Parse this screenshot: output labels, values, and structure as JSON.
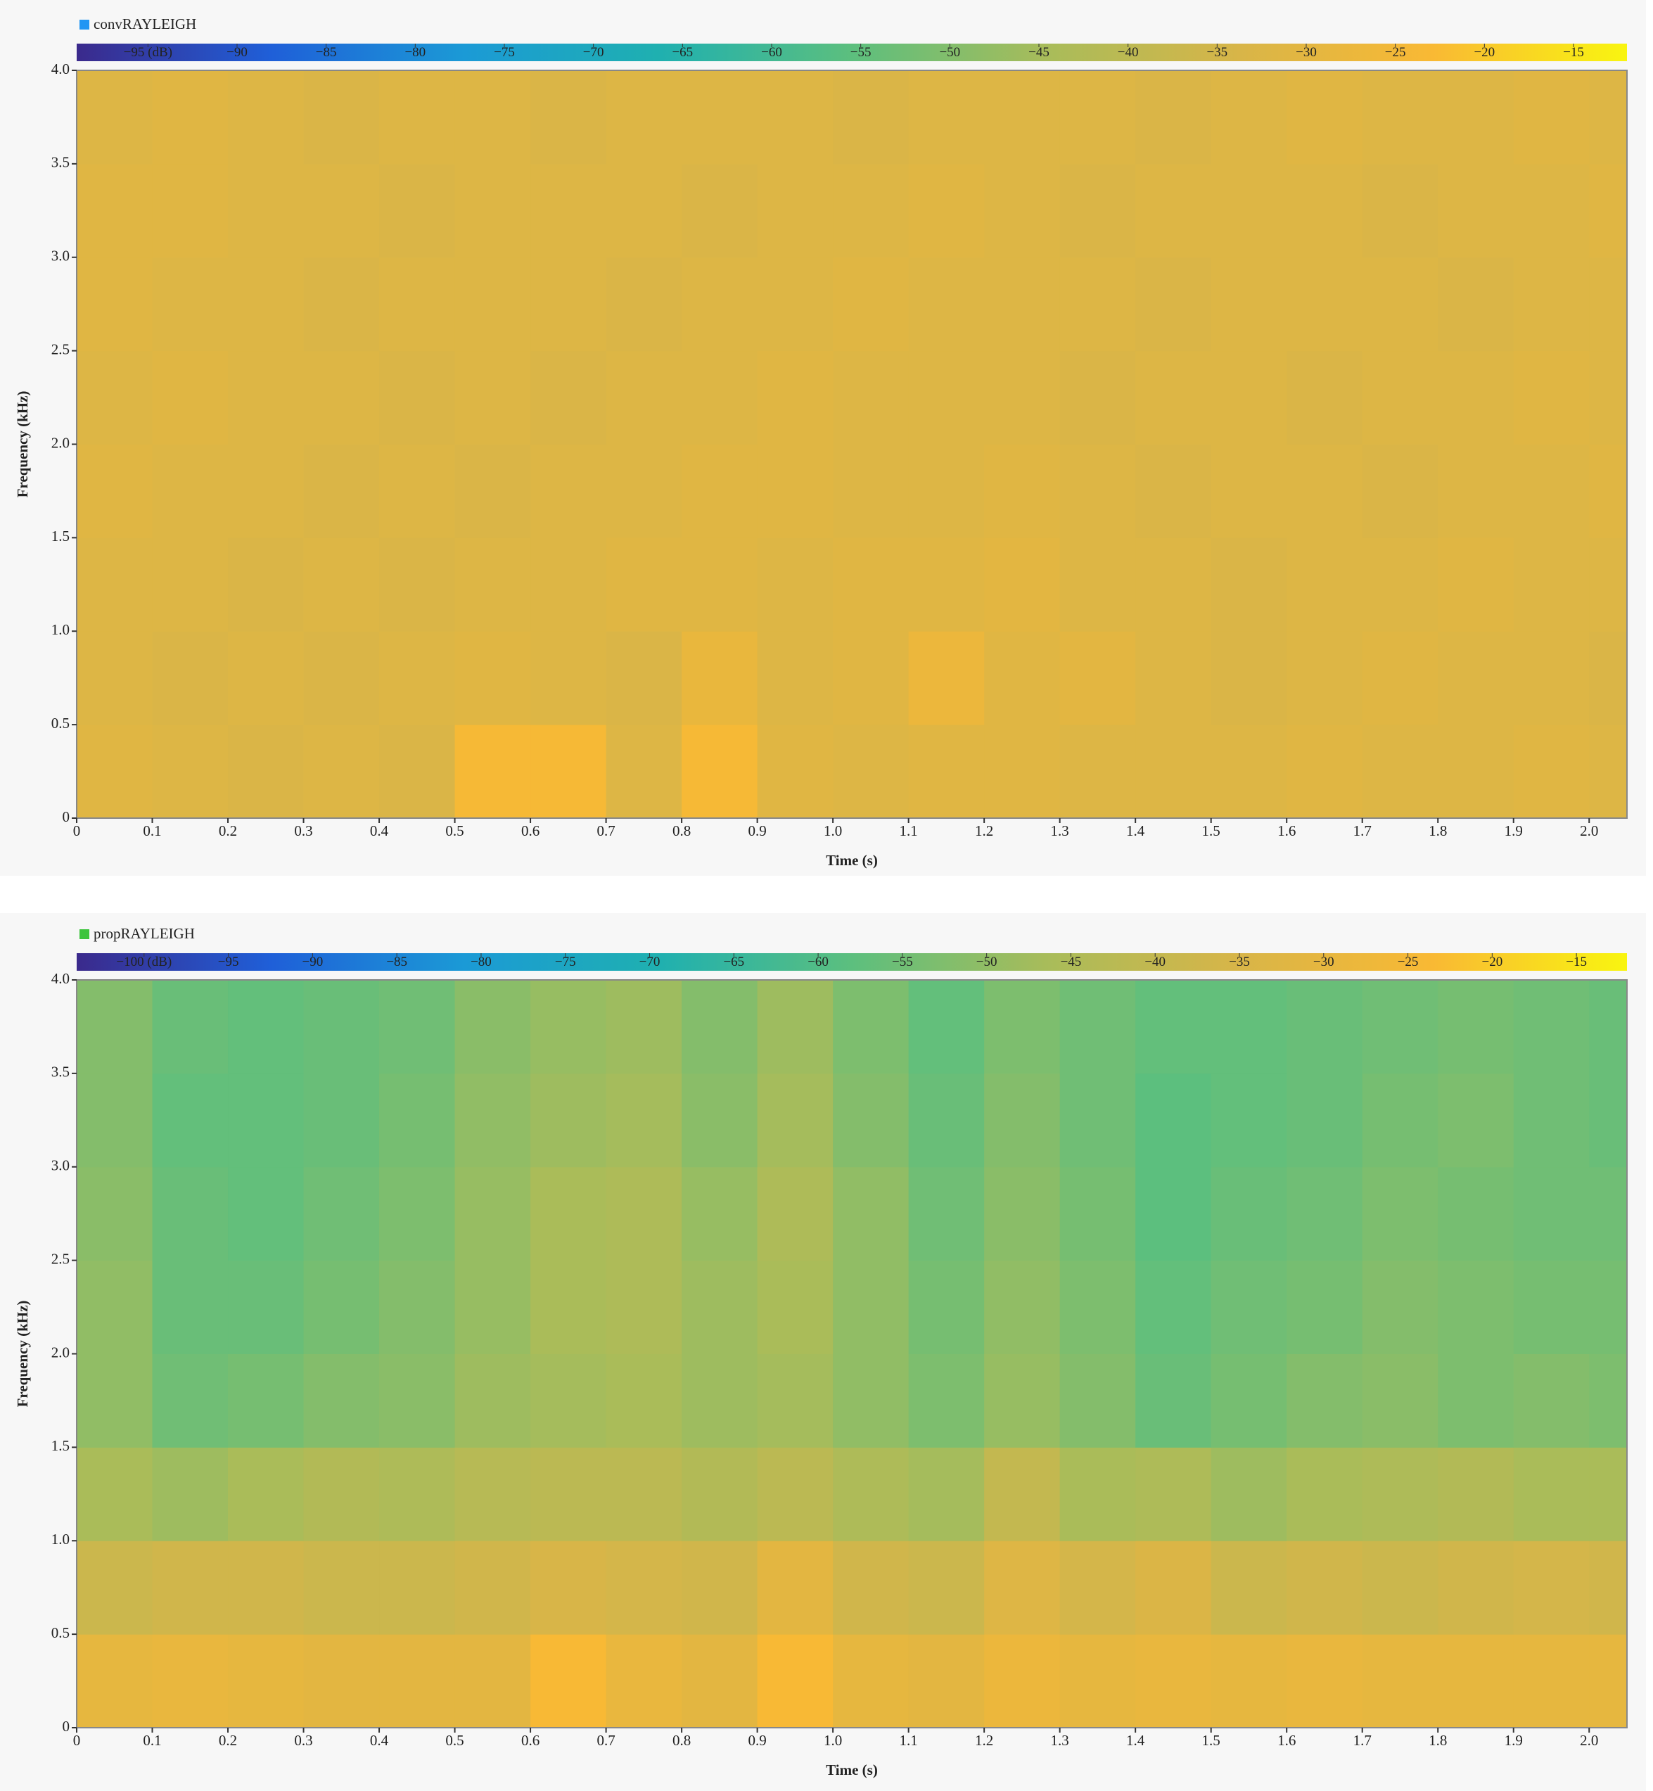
{
  "chart_data": [
    {
      "type": "heatmap",
      "title": "convRAYLEIGH",
      "legend_color": "#2196f3",
      "xlabel": "Time (s)",
      "ylabel": "Frequency (kHz)",
      "xlim": [
        0,
        2.05
      ],
      "ylim": [
        0,
        4.0
      ],
      "xticks": [
        0,
        0.1,
        0.2,
        0.3,
        0.4,
        0.5,
        0.6,
        0.7,
        0.8,
        0.9,
        {
          "value": 1.0,
          "label": "1.0"
        },
        1.1,
        1.2,
        1.3,
        1.4,
        1.5,
        1.6,
        1.7,
        1.8,
        1.9,
        {
          "value": 2.0,
          "label": "2.0"
        }
      ],
      "yticks": [
        0,
        0.5,
        {
          "value": 1.0,
          "label": "1.0"
        },
        1.5,
        {
          "value": 2.0,
          "label": "2.0"
        },
        2.5,
        {
          "value": 3.0,
          "label": "3.0"
        },
        3.5,
        {
          "value": 4.0,
          "label": "4.0"
        }
      ],
      "clim": [
        -99,
        -12
      ],
      "cticks": [
        {
          "value": -95,
          "label": "−95 (dB)"
        },
        {
          "value": -90,
          "label": "−90"
        },
        {
          "value": -85,
          "label": "−85"
        },
        {
          "value": -80,
          "label": "−80"
        },
        {
          "value": -75,
          "label": "−75"
        },
        {
          "value": -70,
          "label": "−70"
        },
        {
          "value": -65,
          "label": "−65"
        },
        {
          "value": -60,
          "label": "−60"
        },
        {
          "value": -55,
          "label": "−55"
        },
        {
          "value": -50,
          "label": "−50"
        },
        {
          "value": -45,
          "label": "−45"
        },
        {
          "value": -40,
          "label": "−40"
        },
        {
          "value": -35,
          "label": "−35"
        },
        {
          "value": -30,
          "label": "−30"
        },
        {
          "value": -25,
          "label": "−25"
        },
        {
          "value": -20,
          "label": "−20"
        },
        {
          "value": -15,
          "label": "−15"
        }
      ],
      "colormap": [
        "#3b2a8c",
        "#1f5fd8",
        "#1b9ad6",
        "#1fb0b0",
        "#5cbf7e",
        "#a8bc5a",
        "#d8b548",
        "#f9b934",
        "#f9f510"
      ],
      "x": [
        0.05,
        0.15,
        0.25,
        0.35,
        0.45,
        0.55,
        0.65,
        0.75,
        0.85,
        0.95,
        1.05,
        1.15,
        1.25,
        1.35,
        1.45,
        1.55,
        1.65,
        1.75,
        1.85,
        1.95,
        2.05
      ],
      "y": [
        0.25,
        0.75,
        1.25,
        1.75,
        2.25,
        2.75,
        3.25,
        3.75
      ],
      "z": [
        [
          -31,
          -32,
          -33,
          -32,
          -33,
          -24,
          -24,
          -32,
          -24,
          -31,
          -32,
          -31,
          -31,
          -32,
          -32,
          -32,
          -31,
          -32,
          -32,
          -31,
          -32
        ],
        [
          -32,
          -33,
          -32,
          -33,
          -32,
          -31,
          -32,
          -33,
          -28,
          -32,
          -31,
          -27,
          -31,
          -30,
          -32,
          -33,
          -32,
          -31,
          -32,
          -32,
          -33
        ],
        [
          -32,
          -32,
          -33,
          -32,
          -33,
          -32,
          -32,
          -31,
          -31,
          -32,
          -31,
          -31,
          -30,
          -32,
          -32,
          -33,
          -32,
          -32,
          -31,
          -32,
          -32
        ],
        [
          -31,
          -32,
          -32,
          -33,
          -32,
          -33,
          -32,
          -32,
          -31,
          -31,
          -32,
          -32,
          -31,
          -32,
          -33,
          -32,
          -32,
          -33,
          -32,
          -32,
          -31
        ],
        [
          -32,
          -31,
          -32,
          -32,
          -33,
          -32,
          -33,
          -32,
          -32,
          -31,
          -32,
          -32,
          -32,
          -33,
          -32,
          -32,
          -33,
          -32,
          -32,
          -31,
          -32
        ],
        [
          -31,
          -32,
          -32,
          -33,
          -32,
          -32,
          -32,
          -33,
          -32,
          -32,
          -31,
          -32,
          -32,
          -32,
          -33,
          -32,
          -32,
          -32,
          -33,
          -32,
          -32
        ],
        [
          -31,
          -31,
          -32,
          -32,
          -33,
          -32,
          -32,
          -32,
          -33,
          -32,
          -32,
          -31,
          -32,
          -33,
          -32,
          -32,
          -32,
          -33,
          -32,
          -32,
          -31
        ],
        [
          -32,
          -31,
          -32,
          -33,
          -32,
          -32,
          -33,
          -32,
          -32,
          -32,
          -33,
          -32,
          -32,
          -32,
          -33,
          -32,
          -31,
          -32,
          -32,
          -31,
          -32
        ]
      ]
    },
    {
      "type": "heatmap",
      "title": "propRAYLEIGH",
      "legend_color": "#3cc43c",
      "xlabel": "Time (s)",
      "ylabel": "Frequency (kHz)",
      "xlim": [
        0,
        2.05
      ],
      "ylim": [
        0,
        4.0
      ],
      "xticks": [
        0,
        0.1,
        0.2,
        0.3,
        0.4,
        0.5,
        0.6,
        0.7,
        0.8,
        0.9,
        {
          "value": 1.0,
          "label": "1.0"
        },
        1.1,
        1.2,
        1.3,
        1.4,
        1.5,
        1.6,
        1.7,
        1.8,
        1.9,
        {
          "value": 2.0,
          "label": "2.0"
        }
      ],
      "yticks": [
        0,
        0.5,
        {
          "value": 1.0,
          "label": "1.0"
        },
        1.5,
        {
          "value": 2.0,
          "label": "2.0"
        },
        2.5,
        {
          "value": 3.0,
          "label": "3.0"
        },
        3.5,
        {
          "value": 4.0,
          "label": "4.0"
        }
      ],
      "clim": [
        -104,
        -12
      ],
      "cticks": [
        {
          "value": -100,
          "label": "−100 (dB)"
        },
        {
          "value": -95,
          "label": "−95"
        },
        {
          "value": -90,
          "label": "−90"
        },
        {
          "value": -85,
          "label": "−85"
        },
        {
          "value": -80,
          "label": "−80"
        },
        {
          "value": -75,
          "label": "−75"
        },
        {
          "value": -70,
          "label": "−70"
        },
        {
          "value": -65,
          "label": "−65"
        },
        {
          "value": -60,
          "label": "−60"
        },
        {
          "value": -55,
          "label": "−55"
        },
        {
          "value": -50,
          "label": "−50"
        },
        {
          "value": -45,
          "label": "−45"
        },
        {
          "value": -40,
          "label": "−40"
        },
        {
          "value": -35,
          "label": "−35"
        },
        {
          "value": -30,
          "label": "−30"
        },
        {
          "value": -25,
          "label": "−25"
        },
        {
          "value": -20,
          "label": "−20"
        },
        {
          "value": -15,
          "label": "−15"
        }
      ],
      "colormap": [
        "#3b2a8c",
        "#1f5fd8",
        "#1b9ad6",
        "#1fb0b0",
        "#5cbf7e",
        "#a8bc5a",
        "#d8b548",
        "#f9b934",
        "#f9f510"
      ],
      "x": [
        0.05,
        0.15,
        0.25,
        0.35,
        0.45,
        0.55,
        0.65,
        0.75,
        0.85,
        0.95,
        1.05,
        1.15,
        1.25,
        1.35,
        1.45,
        1.55,
        1.65,
        1.75,
        1.85,
        1.95,
        2.05
      ],
      "y": [
        0.25,
        0.75,
        1.25,
        1.75,
        2.25,
        2.75,
        3.25,
        3.75
      ],
      "z": [
        [
          -30,
          -29,
          -30,
          -31,
          -31,
          -31,
          -24,
          -29,
          -31,
          -24,
          -30,
          -31,
          -28,
          -30,
          -29,
          -30,
          -29,
          -30,
          -30,
          -30,
          -30
        ],
        [
          -38,
          -37,
          -37,
          -38,
          -38,
          -37,
          -35,
          -36,
          -37,
          -31,
          -37,
          -38,
          -33,
          -36,
          -34,
          -38,
          -37,
          -38,
          -37,
          -36,
          -37
        ],
        [
          -46,
          -48,
          -46,
          -44,
          -45,
          -43,
          -42,
          -42,
          -44,
          -42,
          -45,
          -47,
          -40,
          -46,
          -45,
          -48,
          -46,
          -45,
          -44,
          -46,
          -46
        ],
        [
          -50,
          -55,
          -54,
          -52,
          -51,
          -48,
          -47,
          -46,
          -48,
          -47,
          -50,
          -53,
          -49,
          -52,
          -56,
          -54,
          -52,
          -51,
          -53,
          -52,
          -53
        ],
        [
          -50,
          -56,
          -56,
          -54,
          -52,
          -49,
          -46,
          -45,
          -48,
          -46,
          -50,
          -54,
          -50,
          -53,
          -57,
          -55,
          -54,
          -52,
          -53,
          -54,
          -54
        ],
        [
          -51,
          -56,
          -57,
          -55,
          -53,
          -49,
          -46,
          -45,
          -49,
          -45,
          -50,
          -55,
          -51,
          -54,
          -58,
          -56,
          -55,
          -53,
          -54,
          -55,
          -55
        ],
        [
          -52,
          -57,
          -57,
          -56,
          -54,
          -50,
          -48,
          -47,
          -51,
          -47,
          -52,
          -56,
          -52,
          -55,
          -58,
          -57,
          -56,
          -54,
          -53,
          -55,
          -56
        ],
        [
          -52,
          -56,
          -57,
          -56,
          -55,
          -51,
          -49,
          -48,
          -52,
          -48,
          -53,
          -57,
          -53,
          -55,
          -57,
          -57,
          -56,
          -55,
          -54,
          -55,
          -56
        ]
      ]
    }
  ]
}
